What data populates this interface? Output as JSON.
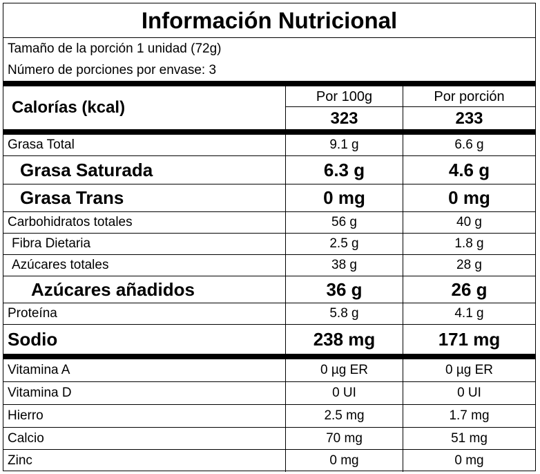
{
  "title": "Información Nutricional",
  "serving": {
    "size": "Tamaño de la porción 1 unidad (72g)",
    "per_container": "Número de porciones por envase:  3"
  },
  "calories": {
    "label": "Calorías (kcal)",
    "col1_header": "Por 100g",
    "col2_header": "Por porción",
    "per100": "323",
    "perPortion": "233"
  },
  "nutrients": [
    {
      "name": "Grasa Total",
      "per100": "9.1 g",
      "perPortion": "6.6 g"
    },
    {
      "name": "Grasa Saturada",
      "per100": "6.3 g",
      "perPortion": "4.6 g"
    },
    {
      "name": "Grasa Trans",
      "per100": "0 mg",
      "perPortion": "0 mg"
    },
    {
      "name": "Carbohidratos totales",
      "per100": "56 g",
      "perPortion": "40 g"
    },
    {
      "name": "Fibra Dietaria",
      "per100": "2.5 g",
      "perPortion": "1.8 g"
    },
    {
      "name": "Azúcares totales",
      "per100": "38 g",
      "perPortion": "28 g"
    },
    {
      "name": "Azúcares añadidos",
      "per100": "36 g",
      "perPortion": "26 g"
    },
    {
      "name": "Proteína",
      "per100": "5.8 g",
      "perPortion": "4.1 g"
    },
    {
      "name": "Sodio",
      "per100": "238 mg",
      "perPortion": "171 mg"
    }
  ],
  "micros": [
    {
      "name": "Vitamina A",
      "per100": "0 µg ER",
      "perPortion": "0 µg ER"
    },
    {
      "name": "Vitamina D",
      "per100": "0 UI",
      "perPortion": "0 UI"
    },
    {
      "name": "Hierro",
      "per100": "2.5 mg",
      "perPortion": "1.7 mg"
    },
    {
      "name": "Calcio",
      "per100": "70 mg",
      "perPortion": "51 mg"
    },
    {
      "name": "Zinc",
      "per100": "0 mg",
      "perPortion": "0 mg"
    }
  ]
}
